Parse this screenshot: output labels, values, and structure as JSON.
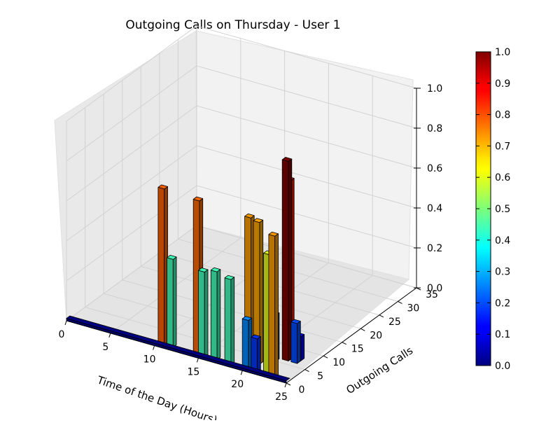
{
  "chart_data": {
    "type": "bar3d",
    "title": "Outgoing Calls on Thursday - User 1",
    "xlabel": "Time of the Day (Hours)",
    "ylabel": "Outgoing Calls",
    "zlabel": "",
    "xlim": [
      0,
      25
    ],
    "ylim": [
      0,
      35
    ],
    "zlim": [
      0,
      1
    ],
    "x_ticks": [
      "0",
      "5",
      "10",
      "15",
      "20",
      "25"
    ],
    "y_ticks": [
      "0",
      "5",
      "10",
      "15",
      "20",
      "25",
      "30",
      "35"
    ],
    "z_ticks": [
      "0.0",
      "0.2",
      "0.4",
      "0.6",
      "0.8",
      "1.0"
    ],
    "grid": true,
    "colorbar": {
      "colormap": "jet",
      "range": [
        0,
        1
      ],
      "ticks": [
        "0.0",
        "0.1",
        "0.2",
        "0.3",
        "0.4",
        "0.5",
        "0.6",
        "0.7",
        "0.8",
        "0.9",
        "1.0"
      ]
    },
    "bars": [
      {
        "x": 10,
        "y": 1,
        "z": 0.78
      },
      {
        "x": 11,
        "y": 1,
        "z": 0.44
      },
      {
        "x": 14,
        "y": 1,
        "z": 0.77
      },
      {
        "x": 15,
        "y": 0,
        "z": 0.44
      },
      {
        "x": 16,
        "y": 1,
        "z": 0.44
      },
      {
        "x": 18,
        "y": 0,
        "z": 0.44
      },
      {
        "x": 19,
        "y": 3,
        "z": 0.72
      },
      {
        "x": 20,
        "y": 3,
        "z": 0.71
      },
      {
        "x": 20,
        "y": 0,
        "z": 0.26
      },
      {
        "x": 21,
        "y": 5,
        "z": 0.23
      },
      {
        "x": 21,
        "y": 0,
        "z": 0.18
      },
      {
        "x": 21,
        "y": 9,
        "z": 0.85
      },
      {
        "x": 22,
        "y": 1,
        "z": 0.6
      },
      {
        "x": 22,
        "y": 6,
        "z": 1.0
      },
      {
        "x": 23,
        "y": 0,
        "z": 0.72
      },
      {
        "x": 23,
        "y": 6,
        "z": 0.2
      },
      {
        "x": 23,
        "y": 7,
        "z": 0.12
      }
    ]
  }
}
